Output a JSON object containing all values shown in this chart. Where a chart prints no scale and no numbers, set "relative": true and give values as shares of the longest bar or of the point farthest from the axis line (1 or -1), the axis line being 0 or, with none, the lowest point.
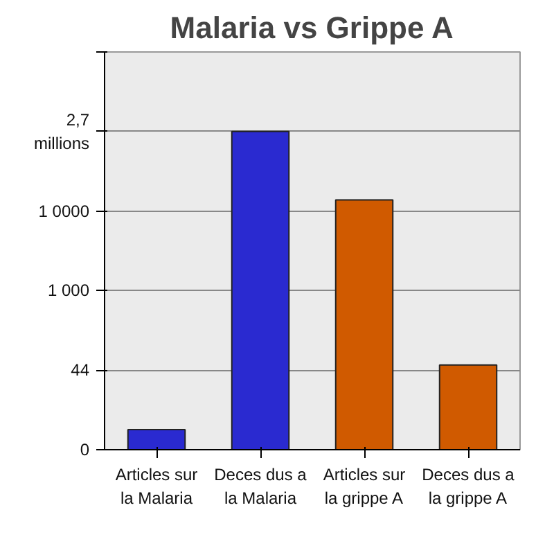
{
  "chart_data": {
    "type": "bar",
    "title": "Malaria vs Grippe A",
    "categories": [
      "Articles sur la Malaria",
      "Deces dus a la Malaria",
      "Articles sur la grippe A",
      "Deces dus a la grippe A"
    ],
    "values": [
      0.063,
      1,
      0.785,
      0.266
    ],
    "colors": [
      "#2a2ad0",
      "#2a2ad0",
      "#d05a00",
      "#d05a00"
    ],
    "relative": true,
    "grid": "y",
    "annotations": [
      "0",
      "44",
      "1 000",
      "1 0000",
      "2,7 millions"
    ]
  }
}
